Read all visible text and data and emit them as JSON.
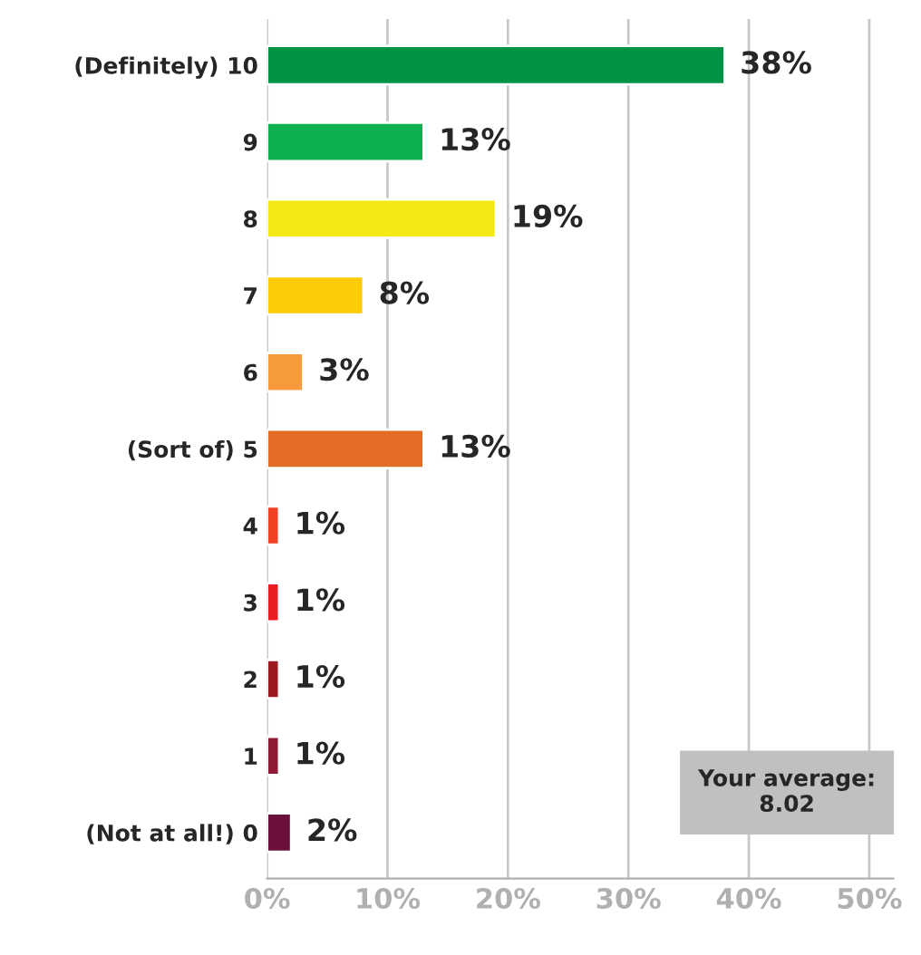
{
  "chart_data": {
    "type": "bar",
    "orientation": "horizontal",
    "categories": [
      "(Definitely) 10",
      "9",
      "8",
      "7",
      "6",
      "(Sort of) 5",
      "4",
      "3",
      "2",
      "1",
      "(Not at all!) 0"
    ],
    "values": [
      38,
      13,
      19,
      8,
      3,
      13,
      1,
      1,
      1,
      1,
      2
    ],
    "colors": [
      "#029444",
      "#0bb14f",
      "#f5e915",
      "#fdcb08",
      "#f69a3c",
      "#e26b25",
      "#ef4123",
      "#ec1c24",
      "#9b1a1e",
      "#8e1a36",
      "#6b0f3c"
    ],
    "value_labels": [
      "38%",
      "13%",
      "19%",
      "8%",
      "3%",
      "13%",
      "1%",
      "1%",
      "1%",
      "1%",
      "2%"
    ],
    "xlim": [
      0,
      52
    ],
    "xticks": [
      {
        "value": 0,
        "label": "0%"
      },
      {
        "value": 10,
        "label": "10%"
      },
      {
        "value": 20,
        "label": "20%"
      },
      {
        "value": 30,
        "label": "30%"
      },
      {
        "value": 40,
        "label": "40%"
      },
      {
        "value": 50,
        "label": "50%"
      }
    ],
    "grid": "x",
    "annotations": [
      "Your average:\n8.02"
    ]
  }
}
